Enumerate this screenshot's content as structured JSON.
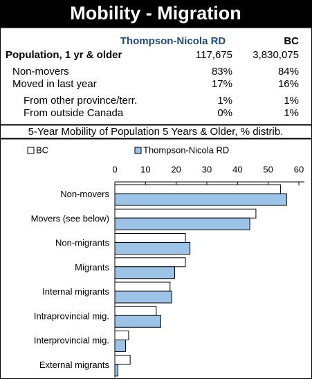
{
  "header": {
    "title": "Mobility - Migration"
  },
  "table": {
    "columns": [
      "Thompson-Nicola RD",
      "BC"
    ],
    "rows": [
      [
        "Population, 1 yr & older",
        "117,675",
        "3,830,075"
      ],
      [
        "Non-movers",
        "83%",
        "84%"
      ],
      [
        "Moved in last year",
        "17%",
        "16%"
      ],
      [
        "From other province/terr.",
        "1%",
        "1%"
      ],
      [
        "From outside Canada",
        "0%",
        "1%"
      ]
    ]
  },
  "chart_data": {
    "type": "bar",
    "title": "5-Year Mobility of Population 5 Years & Older, % distrib.",
    "categories": [
      "Non-movers",
      "Movers (see below)",
      "Non-migrants",
      "Migrants",
      "Internal migrants",
      "Intraprovincial mig.",
      "Interprovincial mig.",
      "External migrants"
    ],
    "series": [
      {
        "name": "BC",
        "color": "#ffffff",
        "values": [
          54,
          46,
          23,
          23,
          18,
          13.5,
          4.5,
          5
        ]
      },
      {
        "name": "Thompson-Nicola RD",
        "color": "#9dc3e6",
        "values": [
          56,
          44,
          24.5,
          19.5,
          18.5,
          15,
          3.5,
          1
        ]
      }
    ],
    "xlim": [
      0,
      60
    ],
    "xticks": [
      0,
      10,
      20,
      30,
      40,
      50,
      60
    ]
  }
}
